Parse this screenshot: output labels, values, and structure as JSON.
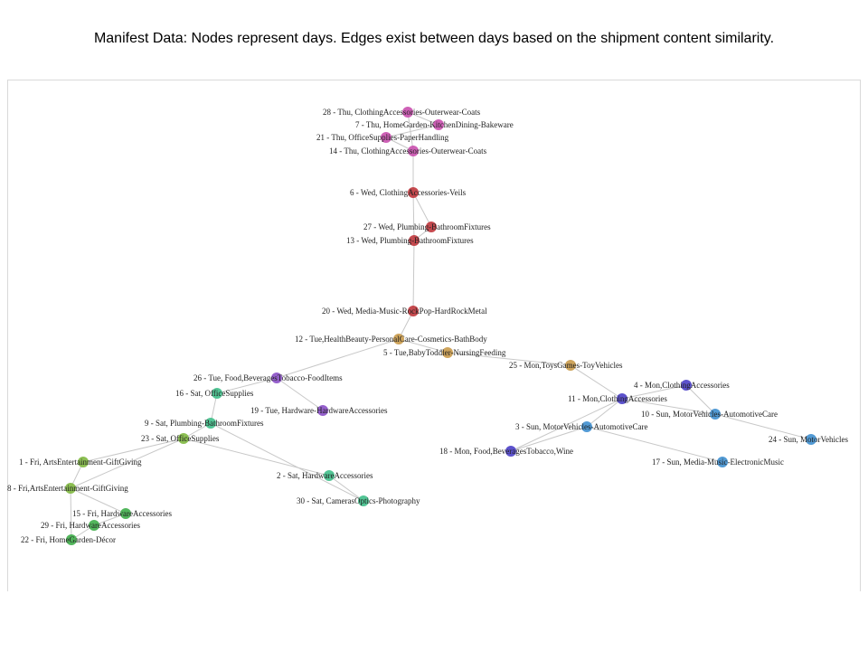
{
  "title": "Manifest Data: Nodes represent days. Edges exist between days based on the shipment content similarity.",
  "colors": {
    "thu": "#c94fae",
    "wed": "#c0363c",
    "tue_tan": "#c99a4a",
    "tue_purple": "#8a4fc6",
    "sat": "#3fbf8a",
    "fri": "#7fb840",
    "fri_green": "#3fae4a",
    "mon_orange": "#c99a4a",
    "mon": "#4a3fc6",
    "sun": "#3f8fcf",
    "edge": "#c8c8c8"
  },
  "nodes": [
    {
      "id": "n28",
      "label": "28 - Thu, ClothingAccessories-Outerwear-Coats",
      "color": "thu"
    },
    {
      "id": "n7",
      "label": "7 - Thu, HomeGarden-KitchenDining-Bakeware",
      "color": "thu"
    },
    {
      "id": "n21",
      "label": "21 - Thu, OfficeSupplies-PaperHandling",
      "color": "thu"
    },
    {
      "id": "n14",
      "label": "14 - Thu, ClothingAccessories-Outerwear-Coats",
      "color": "thu"
    },
    {
      "id": "n6",
      "label": "6 - Wed, ClothingAccessories-Veils",
      "color": "wed"
    },
    {
      "id": "n27",
      "label": "27 - Wed, Plumbing-BathroomFixtures",
      "color": "wed"
    },
    {
      "id": "n13",
      "label": "13 - Wed, Plumbing-BathroomFixtures",
      "color": "wed"
    },
    {
      "id": "n20",
      "label": "20 - Wed, Media-Music-RockPop-HardRockMetal",
      "color": "wed"
    },
    {
      "id": "n12",
      "label": "12 - Tue,HealthBeauty-PersonalCare-Cosmetics-BathBody",
      "color": "tue_tan"
    },
    {
      "id": "n5",
      "label": "5 - Tue,BabyToddler-NursingFeeding",
      "color": "tue_tan"
    },
    {
      "id": "n26",
      "label": "26 - Tue, Food,BeveragesTobacco-FoodItems",
      "color": "tue_purple"
    },
    {
      "id": "n19",
      "label": "19 - Tue, Hardware-HardwareAccessories",
      "color": "tue_purple"
    },
    {
      "id": "n16",
      "label": "16 - Sat, OfficeSupplies",
      "color": "sat"
    },
    {
      "id": "n9",
      "label": "9 - Sat, Plumbing-BathroomFixtures",
      "color": "sat"
    },
    {
      "id": "n23",
      "label": "23 - Sat, OfficeSupplies",
      "color": "fri"
    },
    {
      "id": "n2",
      "label": "2 - Sat, HardwareAccessories",
      "color": "sat"
    },
    {
      "id": "n30",
      "label": "30 - Sat, CamerasOptics-Photography",
      "color": "sat"
    },
    {
      "id": "n1",
      "label": "1 - Fri, ArtsEntertainment-GiftGiving",
      "color": "fri"
    },
    {
      "id": "n8",
      "label": "8 - Fri,ArtsEntertainment-GiftGiving",
      "color": "fri"
    },
    {
      "id": "n15",
      "label": "15 - Fri, HardwareAccessories",
      "color": "fri_green"
    },
    {
      "id": "n29",
      "label": "29 - Fri, HardwareAccessories",
      "color": "fri_green"
    },
    {
      "id": "n22",
      "label": "22 - Fri, HomeGarden-Décor",
      "color": "fri_green"
    },
    {
      "id": "n25",
      "label": "25 - Mon,ToysGames-ToyVehicles",
      "color": "mon_orange"
    },
    {
      "id": "n4",
      "label": "4 - Mon,ClothingAccessories",
      "color": "mon"
    },
    {
      "id": "n11",
      "label": "11 - Mon,ClothingAccessories",
      "color": "mon"
    },
    {
      "id": "n10",
      "label": "10 - Sun, MotorVehicles-AutomotiveCare",
      "color": "sun"
    },
    {
      "id": "n3",
      "label": "3 - Sun, MotorVehicles-AutomotiveCare",
      "color": "sun"
    },
    {
      "id": "n24",
      "label": "24 - Sun, MotorVehicles",
      "color": "sun"
    },
    {
      "id": "n18",
      "label": "18 - Mon, Food,BeveragesTobacco,Wine",
      "color": "mon"
    },
    {
      "id": "n17",
      "label": "17 - Sun, Media-Music-ElectronicMusic",
      "color": "sun"
    }
  ],
  "edges": [
    [
      "n28",
      "n7"
    ],
    [
      "n7",
      "n21"
    ],
    [
      "n21",
      "n14"
    ],
    [
      "n28",
      "n14"
    ],
    [
      "n14",
      "n6"
    ],
    [
      "n6",
      "n27"
    ],
    [
      "n27",
      "n13"
    ],
    [
      "n6",
      "n13"
    ],
    [
      "n13",
      "n20"
    ],
    [
      "n20",
      "n12"
    ],
    [
      "n12",
      "n5"
    ],
    [
      "n12",
      "n26"
    ],
    [
      "n26",
      "n16"
    ],
    [
      "n26",
      "n19"
    ],
    [
      "n16",
      "n9"
    ],
    [
      "n9",
      "n23"
    ],
    [
      "n23",
      "n2"
    ],
    [
      "n23",
      "n1"
    ],
    [
      "n1",
      "n8"
    ],
    [
      "n8",
      "n23"
    ],
    [
      "n2",
      "n30"
    ],
    [
      "n8",
      "n15"
    ],
    [
      "n15",
      "n29"
    ],
    [
      "n29",
      "n22"
    ],
    [
      "n8",
      "n22"
    ],
    [
      "n9",
      "n30"
    ],
    [
      "n5",
      "n25"
    ],
    [
      "n25",
      "n11"
    ],
    [
      "n11",
      "n4"
    ],
    [
      "n11",
      "n10"
    ],
    [
      "n11",
      "n3"
    ],
    [
      "n3",
      "n18"
    ],
    [
      "n11",
      "n18"
    ],
    [
      "n3",
      "n17"
    ],
    [
      "n10",
      "n24"
    ],
    [
      "n4",
      "n10"
    ]
  ]
}
